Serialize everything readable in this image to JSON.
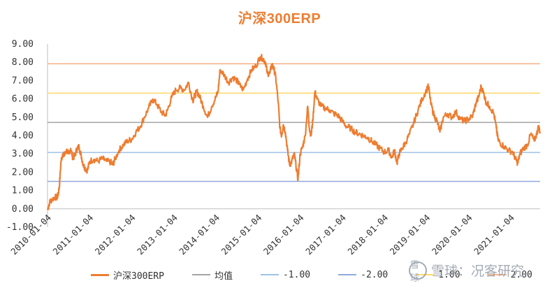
{
  "chart_data": {
    "type": "line",
    "title": "沪深300ERP",
    "ylim": [
      -1.0,
      9.0
    ],
    "yticks": [
      "9.00",
      "8.00",
      "7.00",
      "6.00",
      "5.00",
      "4.00",
      "3.00",
      "2.00",
      "1.00",
      "0.00",
      "-1.00"
    ],
    "x_tick_labels": [
      "2010-01-04",
      "2011-01-04",
      "2012-01-04",
      "2013-01-04",
      "2014-01-04",
      "2015-01-04",
      "2016-01-04",
      "2017-01-04",
      "2018-01-04",
      "2019-01-04",
      "2020-01-04",
      "2021-01-04"
    ],
    "x_range_years": [
      2010.0,
      2021.7
    ],
    "series": [
      {
        "name": "沪深300ERP",
        "color": "#ED7D31",
        "points": [
          [
            2010.0,
            -0.05
          ],
          [
            2010.05,
            0.35
          ],
          [
            2010.1,
            0.5
          ],
          [
            2010.18,
            0.65
          ],
          [
            2010.22,
            0.6
          ],
          [
            2010.25,
            0.75
          ],
          [
            2010.28,
            1.2
          ],
          [
            2010.32,
            2.6
          ],
          [
            2010.36,
            3.0
          ],
          [
            2010.4,
            2.9
          ],
          [
            2010.45,
            3.2
          ],
          [
            2010.5,
            3.0
          ],
          [
            2010.55,
            3.3
          ],
          [
            2010.6,
            2.8
          ],
          [
            2010.65,
            2.9
          ],
          [
            2010.7,
            3.3
          ],
          [
            2010.75,
            3.4
          ],
          [
            2010.8,
            2.9
          ],
          [
            2010.85,
            2.4
          ],
          [
            2010.9,
            2.2
          ],
          [
            2010.95,
            2.1
          ],
          [
            2011.0,
            2.6
          ],
          [
            2011.1,
            2.7
          ],
          [
            2011.2,
            2.6
          ],
          [
            2011.3,
            2.75
          ],
          [
            2011.4,
            2.6
          ],
          [
            2011.5,
            2.55
          ],
          [
            2011.55,
            2.4
          ],
          [
            2011.6,
            2.7
          ],
          [
            2011.7,
            3.2
          ],
          [
            2011.8,
            3.5
          ],
          [
            2011.9,
            3.7
          ],
          [
            2012.0,
            3.8
          ],
          [
            2012.1,
            4.2
          ],
          [
            2012.2,
            4.5
          ],
          [
            2012.3,
            5.0
          ],
          [
            2012.4,
            5.5
          ],
          [
            2012.5,
            6.0
          ],
          [
            2012.6,
            5.7
          ],
          [
            2012.7,
            5.3
          ],
          [
            2012.8,
            5.1
          ],
          [
            2012.85,
            5.4
          ],
          [
            2012.95,
            6.1
          ],
          [
            2013.05,
            6.5
          ],
          [
            2013.15,
            6.6
          ],
          [
            2013.25,
            6.5
          ],
          [
            2013.35,
            6.9
          ],
          [
            2013.45,
            5.9
          ],
          [
            2013.5,
            6.2
          ],
          [
            2013.55,
            6.4
          ],
          [
            2013.6,
            6.2
          ],
          [
            2013.7,
            5.6
          ],
          [
            2013.8,
            5.0
          ],
          [
            2013.9,
            5.6
          ],
          [
            2014.0,
            6.1
          ],
          [
            2014.05,
            6.4
          ],
          [
            2014.1,
            7.6
          ],
          [
            2014.2,
            7.3
          ],
          [
            2014.3,
            6.9
          ],
          [
            2014.4,
            7.2
          ],
          [
            2014.5,
            7.0
          ],
          [
            2014.55,
            6.8
          ],
          [
            2014.65,
            6.5
          ],
          [
            2014.75,
            7.1
          ],
          [
            2014.85,
            7.6
          ],
          [
            2014.95,
            7.8
          ],
          [
            2015.05,
            8.3
          ],
          [
            2015.12,
            8.2
          ],
          [
            2015.18,
            8.0
          ],
          [
            2015.22,
            7.4
          ],
          [
            2015.28,
            7.4
          ],
          [
            2015.33,
            7.9
          ],
          [
            2015.38,
            7.6
          ],
          [
            2015.42,
            7.2
          ],
          [
            2015.48,
            5.8
          ],
          [
            2015.52,
            4.4
          ],
          [
            2015.56,
            4.0
          ],
          [
            2015.6,
            4.6
          ],
          [
            2015.65,
            4.2
          ],
          [
            2015.7,
            3.2
          ],
          [
            2015.75,
            2.4
          ],
          [
            2015.8,
            2.6
          ],
          [
            2015.86,
            3.0
          ],
          [
            2015.9,
            2.4
          ],
          [
            2015.95,
            1.6
          ],
          [
            2016.0,
            3.0
          ],
          [
            2016.06,
            3.4
          ],
          [
            2016.12,
            4.0
          ],
          [
            2016.18,
            5.6
          ],
          [
            2016.22,
            4.4
          ],
          [
            2016.26,
            4.0
          ],
          [
            2016.3,
            4.8
          ],
          [
            2016.35,
            6.4
          ],
          [
            2016.4,
            6.0
          ],
          [
            2016.5,
            5.6
          ],
          [
            2016.6,
            5.5
          ],
          [
            2016.7,
            5.4
          ],
          [
            2016.8,
            5.2
          ],
          [
            2016.9,
            5.1
          ],
          [
            2017.0,
            4.8
          ],
          [
            2017.1,
            4.5
          ],
          [
            2017.2,
            4.4
          ],
          [
            2017.3,
            4.2
          ],
          [
            2017.4,
            4.1
          ],
          [
            2017.5,
            4.0
          ],
          [
            2017.6,
            3.9
          ],
          [
            2017.7,
            3.7
          ],
          [
            2017.8,
            3.5
          ],
          [
            2017.9,
            3.3
          ],
          [
            2018.0,
            3.1
          ],
          [
            2018.1,
            3.2
          ],
          [
            2018.18,
            2.8
          ],
          [
            2018.24,
            3.2
          ],
          [
            2018.3,
            2.5
          ],
          [
            2018.35,
            3.0
          ],
          [
            2018.42,
            3.3
          ],
          [
            2018.5,
            3.6
          ],
          [
            2018.6,
            4.1
          ],
          [
            2018.7,
            4.7
          ],
          [
            2018.8,
            5.4
          ],
          [
            2018.9,
            6.0
          ],
          [
            2019.0,
            6.5
          ],
          [
            2019.05,
            6.7
          ],
          [
            2019.1,
            5.8
          ],
          [
            2019.18,
            5.1
          ],
          [
            2019.25,
            4.8
          ],
          [
            2019.32,
            4.2
          ],
          [
            2019.4,
            5.0
          ],
          [
            2019.5,
            5.2
          ],
          [
            2019.6,
            5.0
          ],
          [
            2019.7,
            5.3
          ],
          [
            2019.8,
            4.9
          ],
          [
            2019.9,
            4.8
          ],
          [
            2020.0,
            4.9
          ],
          [
            2020.1,
            5.1
          ],
          [
            2020.18,
            5.8
          ],
          [
            2020.24,
            6.1
          ],
          [
            2020.3,
            6.7
          ],
          [
            2020.36,
            6.3
          ],
          [
            2020.42,
            5.8
          ],
          [
            2020.5,
            5.6
          ],
          [
            2020.6,
            5.2
          ],
          [
            2020.66,
            4.4
          ],
          [
            2020.7,
            3.8
          ],
          [
            2020.75,
            3.6
          ],
          [
            2020.85,
            3.4
          ],
          [
            2020.95,
            3.2
          ],
          [
            2021.05,
            3.1
          ],
          [
            2021.12,
            2.7
          ],
          [
            2021.17,
            2.5
          ],
          [
            2021.22,
            3.0
          ],
          [
            2021.3,
            3.3
          ],
          [
            2021.4,
            3.5
          ],
          [
            2021.48,
            4.1
          ],
          [
            2021.56,
            3.7
          ],
          [
            2021.62,
            4.1
          ],
          [
            2021.66,
            4.5
          ],
          [
            2021.7,
            4.2
          ]
        ]
      },
      {
        "name": "均值",
        "color": "#A5A5A5",
        "value": 4.72
      },
      {
        "name": "-1.00",
        "color": "#9DC3E6",
        "value": 3.08
      },
      {
        "name": "-2.00",
        "color": "#8FAADC",
        "value": 1.5
      },
      {
        "name": "1.00",
        "color": "#FFD966",
        "value": 6.32
      },
      {
        "name": "2.00",
        "color": "#F4B183",
        "value": 7.92
      }
    ]
  },
  "watermark": {
    "text": "雪球：况客研究",
    "logo": "雪球"
  }
}
